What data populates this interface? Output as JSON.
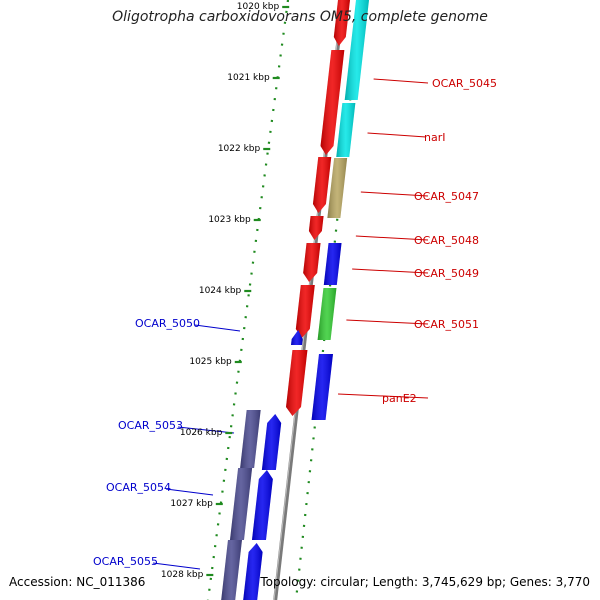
{
  "title": "Oligotropha carboxidovorans OM5, complete genome",
  "footer": {
    "accession": "Accession: NC_011386",
    "topology": "Topology: circular; Length: 3,745,629 bp; Genes: 3,770"
  },
  "colors": {
    "backbone": "#7a7a7a",
    "ruler_dots": "#1f8a1f",
    "label_forward": "#cc0000",
    "label_reverse": "#0000cc",
    "gene_red": "#ee0000",
    "gene_blue": "#0000ee",
    "gene_cyan": "#00e5e5",
    "gene_khaki": "#b8a660",
    "gene_green": "#33cc33",
    "gene_slate": "#4a4a90"
  },
  "scale": {
    "unit": "kbp",
    "ticks": [
      "1020 kbp",
      "1021 kbp",
      "1022 kbp",
      "1023 kbp",
      "1024 kbp",
      "1025 kbp",
      "1026 kbp",
      "1027 kbp",
      "1028 kbp"
    ]
  },
  "genes_forward": [
    {
      "label": "OCAR_5045"
    },
    {
      "label": "narI"
    },
    {
      "label": "OCAR_5047"
    },
    {
      "label": "OCAR_5048"
    },
    {
      "label": "OCAR_5049"
    },
    {
      "label": "OCAR_5051"
    },
    {
      "label": "panE2"
    }
  ],
  "genes_reverse": [
    {
      "label": "OCAR_5050"
    },
    {
      "label": "OCAR_5053"
    },
    {
      "label": "OCAR_5054"
    },
    {
      "label": "OCAR_5055"
    }
  ]
}
